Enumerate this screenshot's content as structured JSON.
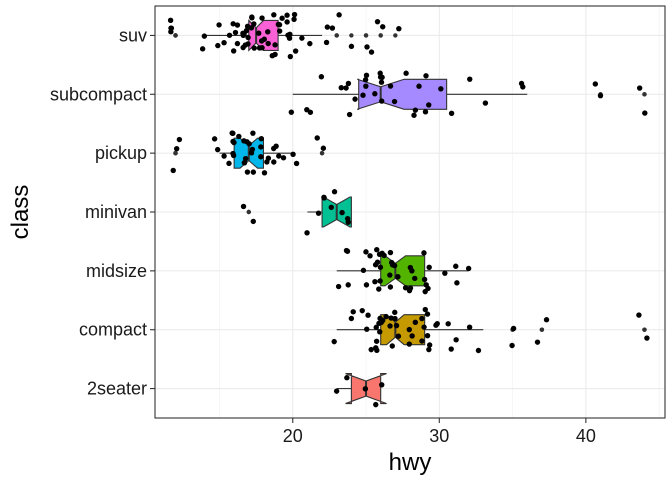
{
  "chart_data": {
    "type": "boxplot",
    "orientation": "horizontal",
    "notched": true,
    "jitter_points": true,
    "xlabel": "hwy",
    "ylabel": "class",
    "xlim": [
      10.6,
      45.4
    ],
    "x_ticks": [
      20,
      30,
      40
    ],
    "grid": true,
    "legend": "none",
    "categories": [
      "2seater",
      "compact",
      "midsize",
      "minivan",
      "pickup",
      "subcompact",
      "suv"
    ],
    "boxes": [
      {
        "category": "2seater",
        "min": 23,
        "q1": 24,
        "median": 25,
        "q3": 26,
        "max": 26,
        "notch_lo": 23.6,
        "notch_hi": 26.4,
        "color": "#F8766D",
        "outliers": []
      },
      {
        "category": "compact",
        "min": 23,
        "q1": 26,
        "median": 27,
        "q3": 29,
        "max": 33,
        "notch_lo": 26.4,
        "notch_hi": 27.6,
        "color": "#C49A00",
        "outliers": [
          35,
          35,
          37,
          37,
          44,
          44
        ]
      },
      {
        "category": "midsize",
        "min": 23,
        "q1": 26,
        "median": 27,
        "q3": 29,
        "max": 32,
        "notch_lo": 26.3,
        "notch_hi": 27.7,
        "color": "#53B400",
        "outliers": []
      },
      {
        "category": "minivan",
        "min": 21,
        "q1": 22,
        "median": 23,
        "q3": 24,
        "max": 24,
        "notch_lo": 22.1,
        "notch_hi": 23.9,
        "color": "#00C094",
        "outliers": [
          17,
          17
        ]
      },
      {
        "category": "pickup",
        "min": 15,
        "q1": 16,
        "median": 17,
        "q3": 18,
        "max": 20,
        "notch_lo": 16.4,
        "notch_hi": 17.6,
        "color": "#00B6EB",
        "outliers": [
          12,
          12,
          12,
          22,
          22
        ]
      },
      {
        "category": "subcompact",
        "min": 20,
        "q1": 24.5,
        "median": 26,
        "q3": 30.5,
        "max": 36,
        "notch_lo": 24.4,
        "notch_hi": 27.6,
        "color": "#A58AFF",
        "outliers": [
          41,
          41,
          44,
          44
        ]
      },
      {
        "category": "suv",
        "min": 14,
        "q1": 17,
        "median": 17.5,
        "q3": 19,
        "max": 22,
        "notch_lo": 17.0,
        "notch_hi": 18.0,
        "color": "#FB61D7",
        "outliers": [
          12,
          12,
          12,
          12,
          23,
          23,
          24,
          25,
          25,
          26,
          26,
          27
        ]
      }
    ],
    "points": {
      "2seater": [
        23,
        24,
        25,
        26,
        26
      ],
      "compact": [
        23,
        24,
        24,
        25,
        25,
        25,
        25,
        26,
        26,
        26,
        26,
        26,
        26,
        26,
        26,
        26,
        26,
        27,
        27,
        27,
        27,
        27,
        27,
        27,
        28,
        28,
        28,
        28,
        29,
        29,
        29,
        29,
        29,
        29,
        29,
        29,
        30,
        30,
        31,
        31,
        31,
        32,
        33,
        35,
        35,
        37,
        37,
        44,
        44
      ],
      "midsize": [
        23,
        24,
        24,
        24,
        25,
        25,
        25,
        25,
        26,
        26,
        26,
        26,
        26,
        26,
        26,
        26,
        26,
        26,
        27,
        27,
        27,
        27,
        27,
        27,
        27,
        28,
        28,
        28,
        28,
        28,
        28,
        29,
        29,
        29,
        29,
        29,
        29,
        30,
        31,
        31,
        32
      ],
      "minivan": [
        17,
        17,
        21,
        22,
        22,
        22,
        23,
        23,
        23,
        24,
        24
      ],
      "pickup": [
        12,
        12,
        12,
        15,
        15,
        15,
        16,
        16,
        16,
        16,
        16,
        16,
        16,
        16,
        17,
        17,
        17,
        17,
        17,
        17,
        17,
        17,
        17,
        17,
        17,
        18,
        18,
        18,
        18,
        18,
        18,
        19,
        19,
        19,
        19,
        19,
        20,
        20,
        22,
        22
      ],
      "subcompact": [
        20,
        21,
        21,
        22,
        23,
        24,
        24,
        24,
        24,
        25,
        25,
        25,
        25,
        26,
        26,
        26,
        26,
        26,
        26,
        27,
        27,
        28,
        28,
        28,
        29,
        29,
        29,
        29,
        30,
        31,
        32,
        33,
        36,
        36,
        41,
        41,
        44,
        44
      ],
      "suv": [
        12,
        12,
        12,
        12,
        14,
        14,
        15,
        15,
        15,
        16,
        16,
        16,
        16,
        16,
        16,
        17,
        17,
        17,
        17,
        17,
        17,
        17,
        17,
        17,
        17,
        17,
        17,
        17,
        17,
        18,
        18,
        18,
        18,
        18,
        18,
        18,
        18,
        19,
        19,
        19,
        19,
        19,
        19,
        19,
        19,
        20,
        20,
        20,
        20,
        20,
        20,
        20,
        20,
        20,
        21,
        21,
        22,
        22,
        23,
        23,
        24,
        25,
        25,
        26,
        26,
        27
      ]
    }
  }
}
